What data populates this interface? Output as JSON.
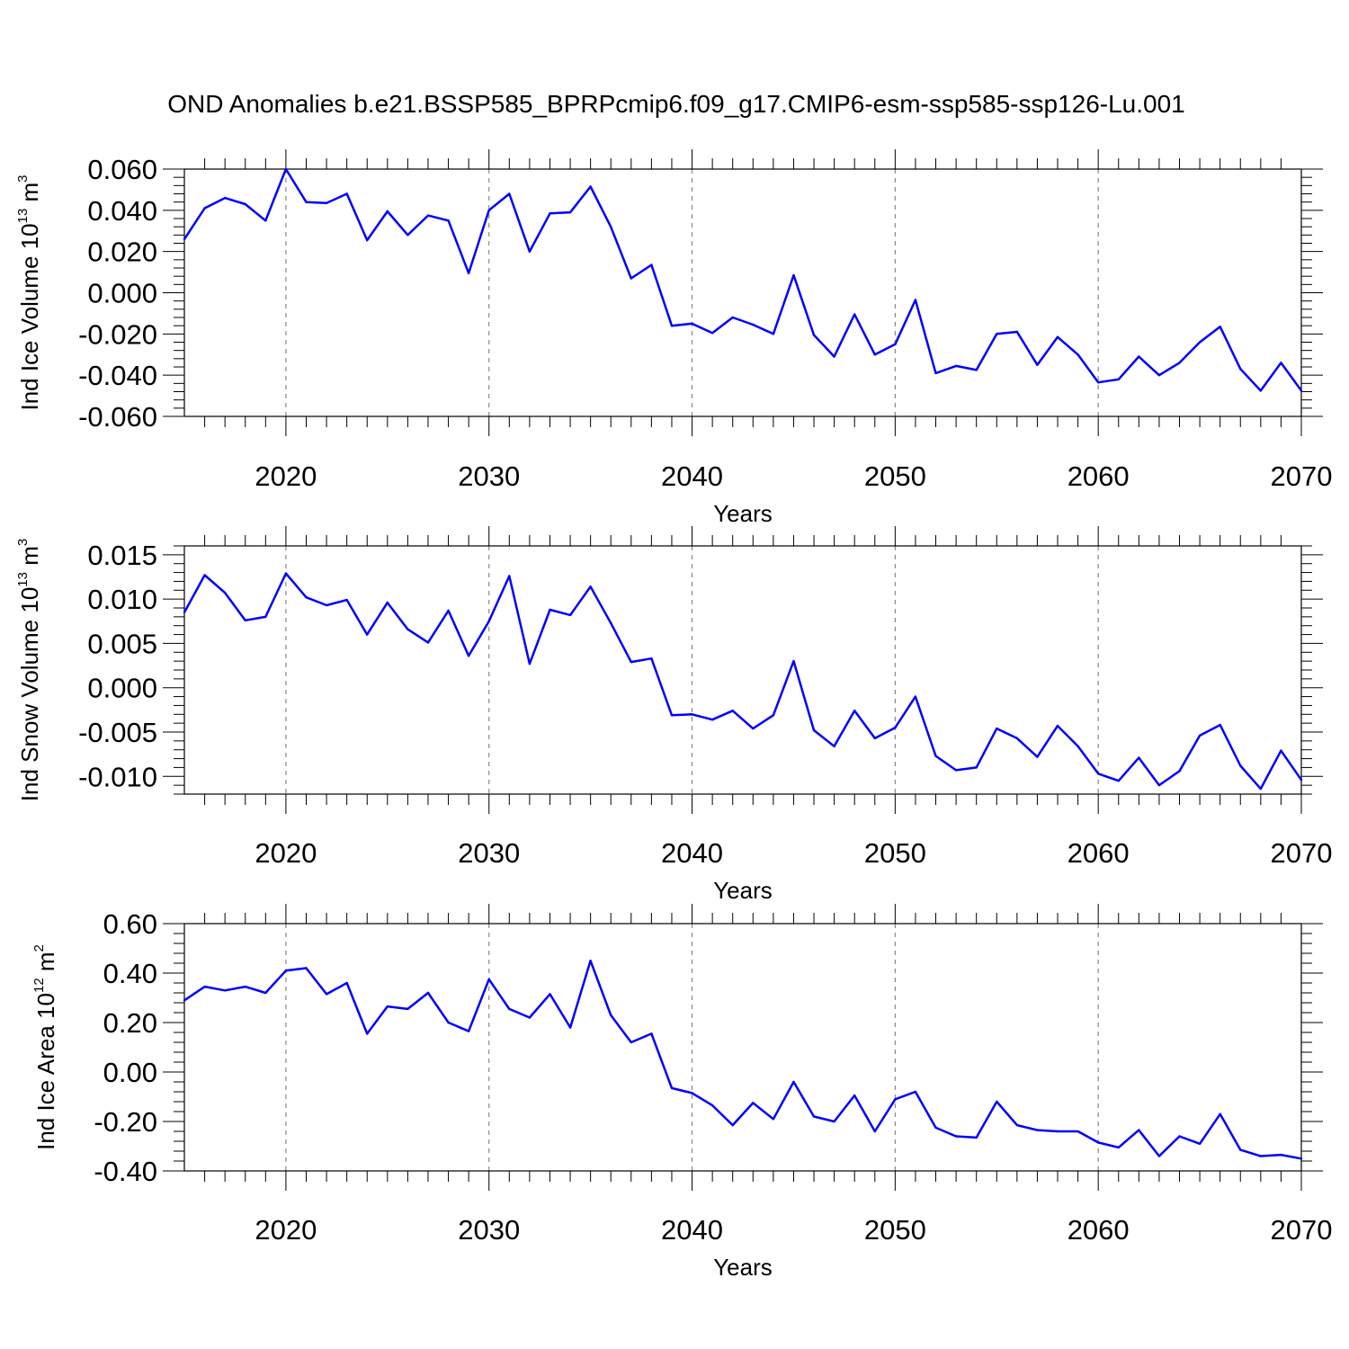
{
  "figure": {
    "title": "OND Anomalies b.e21.BSSP585_BPRPcmip6.f09_g17.CMIP6-esm-ssp585-ssp126-Lu.001",
    "line_color": "#0000ff",
    "grid_color": "#888888"
  },
  "chart_data": [
    {
      "type": "line",
      "ylabel": {
        "base": "Ind Ice Volume 10",
        "exp": "13",
        "unit": " m",
        "unit_exp": "3"
      },
      "xlabel": "Years",
      "xlim": [
        2015,
        2070
      ],
      "ylim": [
        -0.06,
        0.06
      ],
      "yticks": [
        0.06,
        0.04,
        0.02,
        0.0,
        -0.02,
        -0.04,
        -0.06
      ],
      "ytick_labels": [
        "0.060",
        "0.040",
        "0.020",
        "0.000",
        "-0.020",
        "-0.040",
        "-0.060"
      ],
      "xticks": [
        2020,
        2030,
        2040,
        2050,
        2060,
        2070
      ],
      "xtick_labels": [
        "2020",
        "2030",
        "2040",
        "2050",
        "2060",
        "2070"
      ],
      "grid": "vertical dashed at major x ticks",
      "series": [
        {
          "x": [
            2015,
            2016,
            2017,
            2018,
            2019,
            2020,
            2021,
            2022,
            2023,
            2024,
            2025,
            2026,
            2027,
            2028,
            2029,
            2030,
            2031,
            2032,
            2033,
            2034,
            2035,
            2036,
            2037,
            2038,
            2039,
            2040,
            2041,
            2042,
            2043,
            2044,
            2045,
            2046,
            2047,
            2048,
            2049,
            2050,
            2051,
            2052,
            2053,
            2054,
            2055,
            2056,
            2057,
            2058,
            2059,
            2060,
            2061,
            2062,
            2063,
            2064,
            2065,
            2066,
            2067,
            2068,
            2069,
            2070
          ],
          "values": [
            0.026,
            0.041,
            0.046,
            0.043,
            0.035,
            0.06,
            0.044,
            0.0435,
            0.048,
            0.0255,
            0.0395,
            0.028,
            0.0375,
            0.035,
            0.0095,
            0.04,
            0.048,
            0.02,
            0.0385,
            0.039,
            0.0515,
            0.032,
            0.007,
            0.0135,
            -0.016,
            -0.015,
            -0.0195,
            -0.012,
            -0.0155,
            -0.02,
            0.0085,
            -0.0205,
            -0.031,
            -0.0105,
            -0.03,
            -0.025,
            -0.0035,
            -0.039,
            -0.0355,
            -0.0375,
            -0.02,
            -0.019,
            -0.035,
            -0.0215,
            -0.03,
            -0.0435,
            -0.042,
            -0.031,
            -0.04,
            -0.034,
            -0.024,
            -0.0165,
            -0.037,
            -0.0475,
            -0.034,
            -0.0475
          ]
        }
      ]
    },
    {
      "type": "line",
      "ylabel": {
        "base": "Ind Snow Volume 10",
        "exp": "13",
        "unit": " m",
        "unit_exp": "3"
      },
      "xlabel": "Years",
      "xlim": [
        2015,
        2070
      ],
      "ylim": [
        -0.012,
        0.016
      ],
      "yticks": [
        0.015,
        0.01,
        0.005,
        0.0,
        -0.005,
        -0.01
      ],
      "ytick_labels": [
        "0.015",
        "0.010",
        "0.005",
        "0.000",
        "-0.005",
        "-0.010"
      ],
      "xticks": [
        2020,
        2030,
        2040,
        2050,
        2060,
        2070
      ],
      "xtick_labels": [
        "2020",
        "2030",
        "2040",
        "2050",
        "2060",
        "2070"
      ],
      "grid": "vertical dashed at major x ticks",
      "series": [
        {
          "x": [
            2015,
            2016,
            2017,
            2018,
            2019,
            2020,
            2021,
            2022,
            2023,
            2024,
            2025,
            2026,
            2027,
            2028,
            2029,
            2030,
            2031,
            2032,
            2033,
            2034,
            2035,
            2036,
            2037,
            2038,
            2039,
            2040,
            2041,
            2042,
            2043,
            2044,
            2045,
            2046,
            2047,
            2048,
            2049,
            2050,
            2051,
            2052,
            2053,
            2054,
            2055,
            2056,
            2057,
            2058,
            2059,
            2060,
            2061,
            2062,
            2063,
            2064,
            2065,
            2066,
            2067,
            2068,
            2069,
            2070
          ],
          "values": [
            0.0085,
            0.0127,
            0.0107,
            0.0076,
            0.008,
            0.0129,
            0.0102,
            0.0093,
            0.0099,
            0.006,
            0.0096,
            0.0066,
            0.0051,
            0.0087,
            0.0036,
            0.0075,
            0.0126,
            0.0027,
            0.0088,
            0.0082,
            0.0114,
            0.0073,
            0.0029,
            0.0033,
            -0.0031,
            -0.003,
            -0.0036,
            -0.0026,
            -0.0046,
            -0.0031,
            0.003,
            -0.0048,
            -0.0066,
            -0.0026,
            -0.0057,
            -0.0045,
            -0.001,
            -0.0077,
            -0.0093,
            -0.009,
            -0.0046,
            -0.0057,
            -0.0078,
            -0.0043,
            -0.0066,
            -0.0097,
            -0.0105,
            -0.0079,
            -0.011,
            -0.0094,
            -0.0054,
            -0.0042,
            -0.0088,
            -0.0114,
            -0.0071,
            -0.0104
          ]
        }
      ]
    },
    {
      "type": "line",
      "ylabel": {
        "base": "Ind Ice Area 10",
        "exp": "12",
        "unit": " m",
        "unit_exp": "2"
      },
      "xlabel": "Years",
      "xlim": [
        2015,
        2070
      ],
      "ylim": [
        -0.4,
        0.6
      ],
      "yticks": [
        0.6,
        0.4,
        0.2,
        0.0,
        -0.2,
        -0.4
      ],
      "ytick_labels": [
        "0.60",
        "0.40",
        "0.20",
        "0.00",
        "-0.20",
        "-0.40"
      ],
      "xticks": [
        2020,
        2030,
        2040,
        2050,
        2060,
        2070
      ],
      "xtick_labels": [
        "2020",
        "2030",
        "2040",
        "2050",
        "2060",
        "2070"
      ],
      "grid": "vertical dashed at major x ticks",
      "series": [
        {
          "x": [
            2015,
            2016,
            2017,
            2018,
            2019,
            2020,
            2021,
            2022,
            2023,
            2024,
            2025,
            2026,
            2027,
            2028,
            2029,
            2030,
            2031,
            2032,
            2033,
            2034,
            2035,
            2036,
            2037,
            2038,
            2039,
            2040,
            2041,
            2042,
            2043,
            2044,
            2045,
            2046,
            2047,
            2048,
            2049,
            2050,
            2051,
            2052,
            2053,
            2054,
            2055,
            2056,
            2057,
            2058,
            2059,
            2060,
            2061,
            2062,
            2063,
            2064,
            2065,
            2066,
            2067,
            2068,
            2069,
            2070
          ],
          "values": [
            0.29,
            0.345,
            0.33,
            0.345,
            0.32,
            0.41,
            0.42,
            0.315,
            0.36,
            0.155,
            0.265,
            0.255,
            0.32,
            0.2,
            0.165,
            0.375,
            0.255,
            0.22,
            0.315,
            0.18,
            0.45,
            0.23,
            0.12,
            0.155,
            -0.065,
            -0.085,
            -0.135,
            -0.215,
            -0.125,
            -0.19,
            -0.04,
            -0.18,
            -0.2,
            -0.095,
            -0.24,
            -0.11,
            -0.08,
            -0.225,
            -0.26,
            -0.265,
            -0.12,
            -0.215,
            -0.235,
            -0.24,
            -0.24,
            -0.285,
            -0.305,
            -0.235,
            -0.34,
            -0.26,
            -0.29,
            -0.17,
            -0.315,
            -0.34,
            -0.335,
            -0.35
          ]
        }
      ]
    }
  ]
}
